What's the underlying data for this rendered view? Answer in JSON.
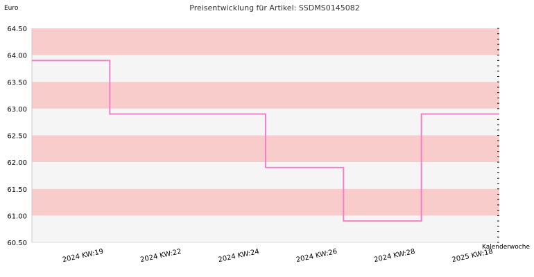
{
  "chart_data": {
    "type": "line",
    "step": true,
    "title": "Preisentwicklung für Artikel: SSDMS0145082",
    "ylabel": "Euro",
    "xlabel": "Kalenderwoche",
    "ylim": [
      60.5,
      64.5
    ],
    "y_ticks": [
      "64.50",
      "64.00",
      "63.50",
      "63.00",
      "62.50",
      "62.00",
      "61.50",
      "61.00",
      "60.50"
    ],
    "categories": [
      "2024 KW:19",
      "2024 KW:22",
      "2024 KW:24",
      "2024 KW:26",
      "2024 KW:28",
      "2025 KW:18"
    ],
    "series": [
      {
        "values": [
          63.9,
          62.9,
          62.9,
          61.9,
          60.9,
          62.9
        ]
      }
    ],
    "grid": true,
    "band_colors": [
      "#f9cccc",
      "#f5f5f5"
    ],
    "line_color": "#f080c8"
  }
}
